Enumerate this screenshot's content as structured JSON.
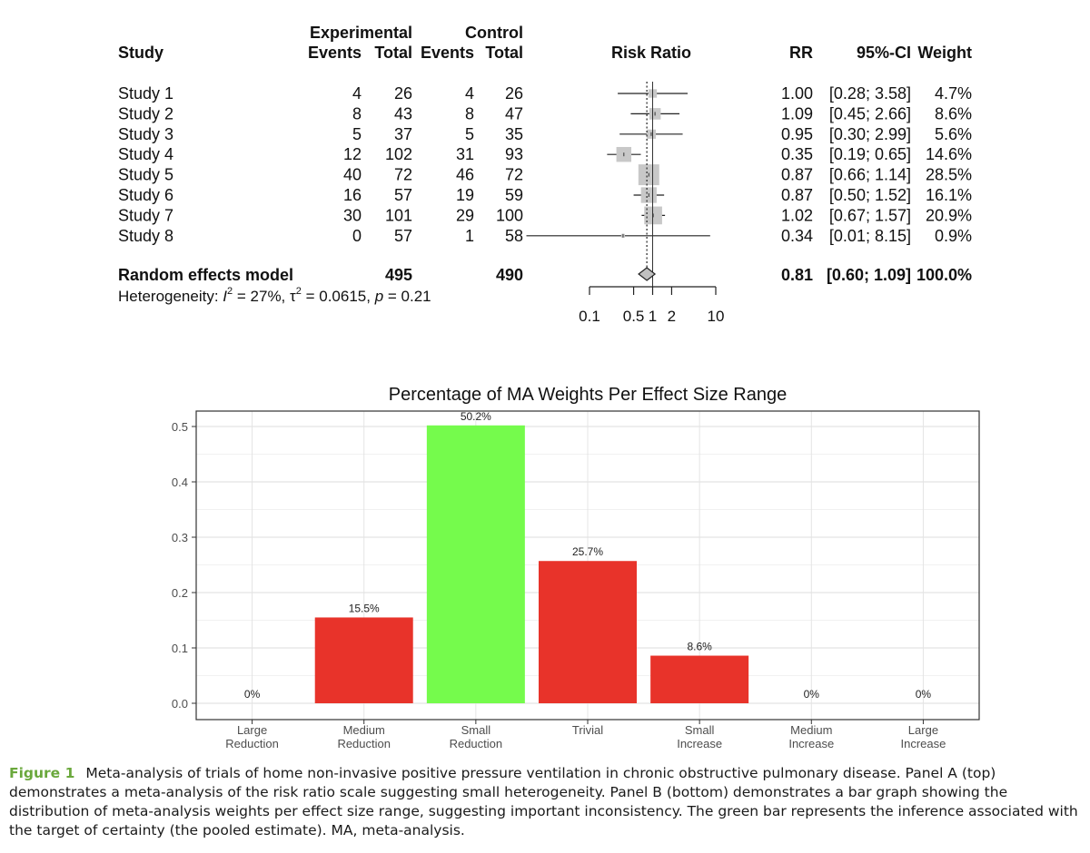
{
  "forest": {
    "headers": {
      "study": "Study",
      "experimental": "Experimental",
      "control": "Control",
      "exp_events": "Events",
      "exp_total": "Total",
      "ctrl_events": "Events",
      "ctrl_total": "Total",
      "risk_ratio": "Risk Ratio",
      "rr": "RR",
      "ci": "95%-CI",
      "weight": "Weight"
    },
    "studies": [
      {
        "name": "Study 1",
        "exp_events": "4",
        "exp_total": "26",
        "ctrl_events": "4",
        "ctrl_total": "26",
        "rr": "1.00",
        "ci": "[0.28; 3.58]",
        "weight": "4.7%",
        "rr_value": 1.0,
        "ci_low": 0.28,
        "ci_high": 3.58,
        "weight_pct": 4.7
      },
      {
        "name": "Study 2",
        "exp_events": "8",
        "exp_total": "43",
        "ctrl_events": "8",
        "ctrl_total": "47",
        "rr": "1.09",
        "ci": "[0.45; 2.66]",
        "weight": "8.6%",
        "rr_value": 1.09,
        "ci_low": 0.45,
        "ci_high": 2.66,
        "weight_pct": 8.6
      },
      {
        "name": "Study 3",
        "exp_events": "5",
        "exp_total": "37",
        "ctrl_events": "5",
        "ctrl_total": "35",
        "rr": "0.95",
        "ci": "[0.30; 2.99]",
        "weight": "5.6%",
        "rr_value": 0.95,
        "ci_low": 0.3,
        "ci_high": 2.99,
        "weight_pct": 5.6
      },
      {
        "name": "Study 4",
        "exp_events": "12",
        "exp_total": "102",
        "ctrl_events": "31",
        "ctrl_total": "93",
        "rr": "0.35",
        "ci": "[0.19; 0.65]",
        "weight": "14.6%",
        "rr_value": 0.35,
        "ci_low": 0.19,
        "ci_high": 0.65,
        "weight_pct": 14.6
      },
      {
        "name": "Study 5",
        "exp_events": "40",
        "exp_total": "72",
        "ctrl_events": "46",
        "ctrl_total": "72",
        "rr": "0.87",
        "ci": "[0.66; 1.14]",
        "weight": "28.5%",
        "rr_value": 0.87,
        "ci_low": 0.66,
        "ci_high": 1.14,
        "weight_pct": 28.5
      },
      {
        "name": "Study 6",
        "exp_events": "16",
        "exp_total": "57",
        "ctrl_events": "19",
        "ctrl_total": "59",
        "rr": "0.87",
        "ci": "[0.50; 1.52]",
        "weight": "16.1%",
        "rr_value": 0.87,
        "ci_low": 0.5,
        "ci_high": 1.52,
        "weight_pct": 16.1
      },
      {
        "name": "Study 7",
        "exp_events": "30",
        "exp_total": "101",
        "ctrl_events": "29",
        "ctrl_total": "100",
        "rr": "1.02",
        "ci": "[0.67; 1.57]",
        "weight": "20.9%",
        "rr_value": 1.02,
        "ci_low": 0.67,
        "ci_high": 1.57,
        "weight_pct": 20.9
      },
      {
        "name": "Study 8",
        "exp_events": "0",
        "exp_total": "57",
        "ctrl_events": "1",
        "ctrl_total": "58",
        "rr": "0.34",
        "ci": "[0.01; 8.15]",
        "weight": "0.9%",
        "rr_value": 0.34,
        "ci_low": 0.01,
        "ci_high": 8.15,
        "weight_pct": 0.9
      }
    ],
    "pooled": {
      "name": "Random effects model",
      "exp_total": "495",
      "ctrl_total": "490",
      "rr": "0.81",
      "ci": "[0.60; 1.09]",
      "weight": "100.0%",
      "rr_value": 0.81,
      "ci_low": 0.6,
      "ci_high": 1.09
    },
    "heterogeneity": {
      "prefix": "Heterogeneity: ",
      "i_sym": "I",
      "sup2": "2",
      "i2_value": " = 27%, ",
      "tau_sym": "τ",
      "tau_value": " = 0.0615, ",
      "p_sym": "p",
      "p_value": " = 0.21"
    },
    "axis_ticks": [
      {
        "value": 0.1,
        "label": "0.1"
      },
      {
        "value": 0.5,
        "label": "0.5"
      },
      {
        "value": 1,
        "label": "1"
      },
      {
        "value": 2,
        "label": "2"
      },
      {
        "value": 10,
        "label": "10"
      }
    ],
    "axis_range": [
      0.1,
      10
    ],
    "scale": "log"
  },
  "chart_data": {
    "type": "bar",
    "title": "Percentage of MA Weights Per Effect Size Range",
    "categories": [
      [
        "Large",
        "Reduction"
      ],
      [
        "Medium",
        "Reduction"
      ],
      [
        "Small",
        "Reduction"
      ],
      [
        "Trivial"
      ],
      [
        "Small",
        "Increase"
      ],
      [
        "Medium",
        "Increase"
      ],
      [
        "Large",
        "Increase"
      ]
    ],
    "values": [
      0,
      0.155,
      0.502,
      0.257,
      0.086,
      0,
      0
    ],
    "data_labels": [
      "0%",
      "15.5%",
      "50.2%",
      "25.7%",
      "8.6%",
      "0%",
      "0%"
    ],
    "colors": [
      "#e8332a",
      "#e8332a",
      "#75fb4c",
      "#e8332a",
      "#e8332a",
      "#e8332a",
      "#e8332a"
    ],
    "yticks": [
      "0.0",
      "0.1",
      "0.2",
      "0.3",
      "0.4",
      "0.5"
    ],
    "ylim": [
      0,
      0.52
    ],
    "grid": true,
    "xlabel": "",
    "ylabel": ""
  },
  "caption": {
    "label": "Figure 1",
    "text": "Meta-analysis of trials of home non-invasive positive pressure ventilation in chronic obstructive pulmonary disease. Panel A (top) demonstrates a meta-analysis of the risk ratio scale suggesting small heterogeneity. Panel B (bottom) demonstrates a bar graph showing the distribution of meta-analysis weights per effect size range, suggesting important inconsistency. The green bar represents the inference associated with the target of certainty (the pooled estimate). MA, meta-analysis."
  },
  "colors": {
    "bar_red": "#e8332a",
    "bar_green": "#75fb4c",
    "square_gray": "#c8c8c8",
    "caption_label": "#6aa83c"
  }
}
